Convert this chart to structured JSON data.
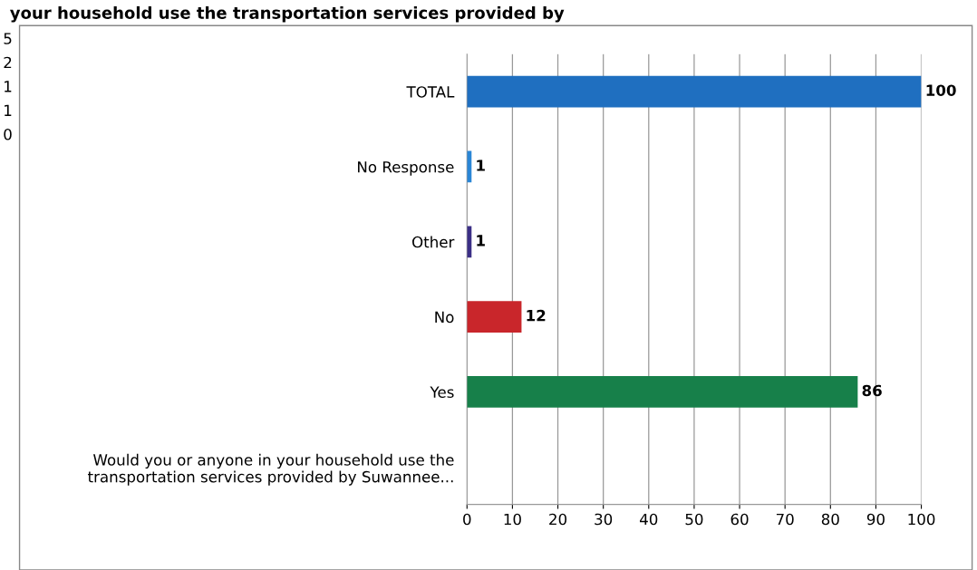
{
  "chart_data": {
    "type": "bar",
    "orientation": "horizontal",
    "title": "your household use the transportation services provided by",
    "categories": [
      "TOTAL",
      "No Response",
      "Other",
      "No",
      "Yes",
      "Would you or anyone in your household use the\ntransportation services provided by Suwannee..."
    ],
    "values": [
      100,
      1,
      1,
      12,
      86,
      null
    ],
    "colors": [
      "#1f6fc0",
      "#2a86d6",
      "#3b2f86",
      "#c9262b",
      "#17804a",
      "#888888"
    ],
    "data_labels": true,
    "xlim": [
      0,
      100
    ],
    "xticks": [
      0,
      10,
      20,
      30,
      40,
      50,
      60,
      70,
      80,
      90,
      100
    ],
    "grid": "x",
    "legend": false,
    "annotations": [
      "5",
      "2",
      "1",
      "1",
      "0"
    ]
  }
}
